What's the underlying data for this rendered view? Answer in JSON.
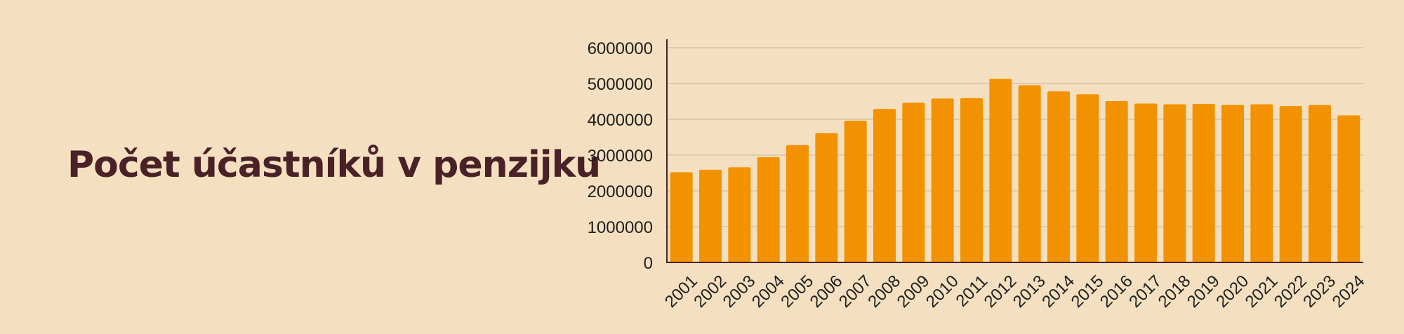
{
  "title": "Počet účastníků v penzijku",
  "colors": {
    "background": "#f4e0c0",
    "title": "#4a2127",
    "bar": "#f29200",
    "axis": "#4a2127",
    "grid": "#c7b49a",
    "tick_label": "#1e1e1e"
  },
  "chart_data": {
    "type": "bar",
    "title": "Počet účastníků v penzijku",
    "xlabel": "",
    "ylabel": "",
    "categories": [
      "2001",
      "2002",
      "2003",
      "2004",
      "2005",
      "2006",
      "2007",
      "2008",
      "2009",
      "2010",
      "2011",
      "2012",
      "2013",
      "2014",
      "2015",
      "2016",
      "2017",
      "2018",
      "2019",
      "2020",
      "2021",
      "2022",
      "2023",
      "2024"
    ],
    "values": [
      2520000,
      2590000,
      2660000,
      2940000,
      3280000,
      3610000,
      3960000,
      4290000,
      4460000,
      4580000,
      4590000,
      5130000,
      4950000,
      4780000,
      4700000,
      4510000,
      4440000,
      4420000,
      4430000,
      4400000,
      4420000,
      4370000,
      4400000,
      4110000
    ],
    "ylim": [
      0,
      6000000
    ],
    "yticks": [
      "0",
      "1000000",
      "2000000",
      "3000000",
      "4000000",
      "5000000",
      "6000000"
    ],
    "grid": true,
    "legend": "none"
  }
}
